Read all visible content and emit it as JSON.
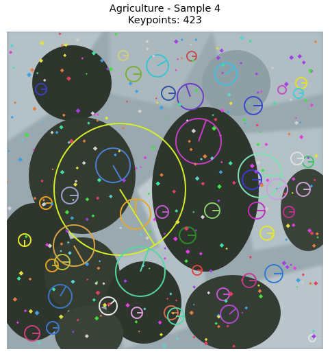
{
  "title": {
    "line1": "Agriculture - Sample 4",
    "line2": "Keypoints: 423"
  },
  "image": {
    "subject": "aerial-farmland-with-center-pivot-fields",
    "colors": {
      "background": "#9aa9b0",
      "field_dark": "#2e352c",
      "field_light": "#c4cfd4"
    }
  },
  "keypoints": {
    "count": 423,
    "overlay": "circles-with-orientation-lines-and-small-markers"
  }
}
